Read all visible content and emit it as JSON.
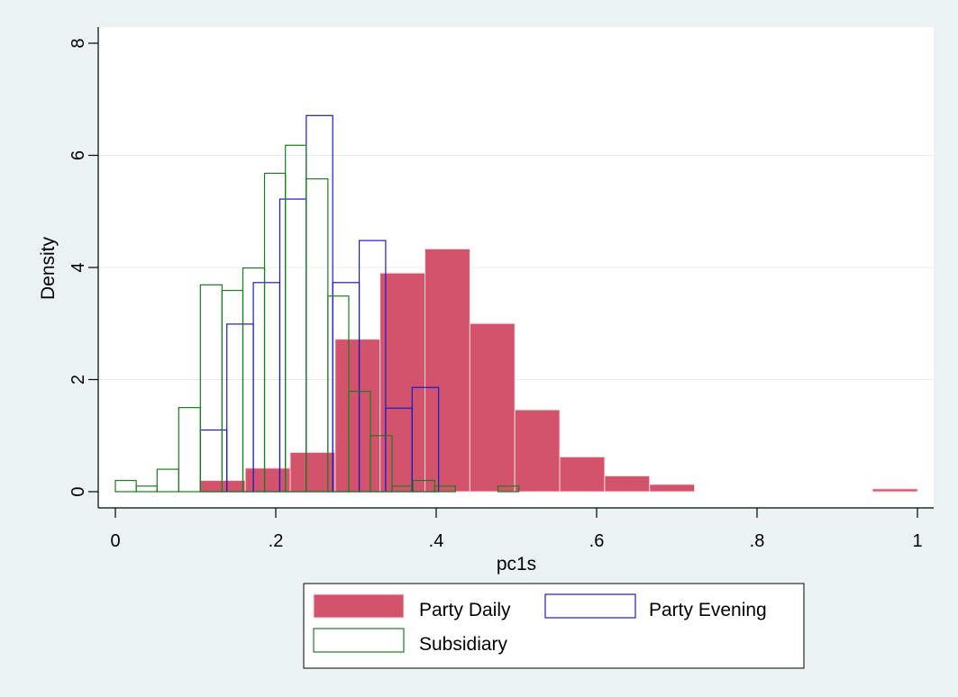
{
  "chart_data": {
    "type": "bar",
    "subtype": "histogram-overlay",
    "xlabel": "pc1s",
    "ylabel": "Density",
    "xlim": [
      0,
      1
    ],
    "ylim": [
      0,
      8
    ],
    "x_ticks": [
      {
        "value": 0,
        "label": "0"
      },
      {
        "value": 0.2,
        "label": ".2"
      },
      {
        "value": 0.4,
        "label": ".4"
      },
      {
        "value": 0.6,
        "label": ".6"
      },
      {
        "value": 0.8,
        "label": ".8"
      },
      {
        "value": 1,
        "label": "1"
      }
    ],
    "y_ticks": [
      {
        "value": 0,
        "label": "0"
      },
      {
        "value": 2,
        "label": "2"
      },
      {
        "value": 4,
        "label": "4"
      },
      {
        "value": 6,
        "label": "6"
      },
      {
        "value": 8,
        "label": "8"
      }
    ],
    "grid": "horizontal",
    "legend_position": "bottom",
    "series": [
      {
        "name": "Party Daily",
        "style": "filled",
        "color": "#d4536c",
        "edge_color": "#f4dada",
        "bins": [
          {
            "x0": 0.106,
            "x1": 0.162,
            "value": 0.2
          },
          {
            "x0": 0.162,
            "x1": 0.218,
            "value": 0.42
          },
          {
            "x0": 0.218,
            "x1": 0.274,
            "value": 0.7
          },
          {
            "x0": 0.274,
            "x1": 0.33,
            "value": 2.72
          },
          {
            "x0": 0.33,
            "x1": 0.386,
            "value": 3.9
          },
          {
            "x0": 0.386,
            "x1": 0.442,
            "value": 4.33
          },
          {
            "x0": 0.442,
            "x1": 0.498,
            "value": 3.0
          },
          {
            "x0": 0.498,
            "x1": 0.554,
            "value": 1.46
          },
          {
            "x0": 0.554,
            "x1": 0.61,
            "value": 0.62
          },
          {
            "x0": 0.61,
            "x1": 0.666,
            "value": 0.28
          },
          {
            "x0": 0.666,
            "x1": 0.722,
            "value": 0.13
          },
          {
            "x0": 0.944,
            "x1": 1.0,
            "value": 0.05
          }
        ]
      },
      {
        "name": "Party Evening",
        "style": "outline",
        "color": "#1a1acc",
        "bins": [
          {
            "x0": 0.106,
            "x1": 0.139,
            "value": 1.1
          },
          {
            "x0": 0.139,
            "x1": 0.172,
            "value": 2.99
          },
          {
            "x0": 0.172,
            "x1": 0.205,
            "value": 3.73
          },
          {
            "x0": 0.205,
            "x1": 0.238,
            "value": 5.22
          },
          {
            "x0": 0.238,
            "x1": 0.271,
            "value": 6.71
          },
          {
            "x0": 0.271,
            "x1": 0.304,
            "value": 3.73
          },
          {
            "x0": 0.304,
            "x1": 0.337,
            "value": 4.48
          },
          {
            "x0": 0.337,
            "x1": 0.37,
            "value": 1.49
          },
          {
            "x0": 0.37,
            "x1": 0.403,
            "value": 1.86
          }
        ]
      },
      {
        "name": "Subsidiary",
        "style": "outline",
        "color": "#1a7f1a",
        "bins": [
          {
            "x0": 0.0,
            "x1": 0.026,
            "value": 0.2
          },
          {
            "x0": 0.026,
            "x1": 0.052,
            "value": 0.1
          },
          {
            "x0": 0.052,
            "x1": 0.079,
            "value": 0.4
          },
          {
            "x0": 0.079,
            "x1": 0.106,
            "value": 1.5
          },
          {
            "x0": 0.106,
            "x1": 0.133,
            "value": 3.69
          },
          {
            "x0": 0.133,
            "x1": 0.159,
            "value": 3.59
          },
          {
            "x0": 0.159,
            "x1": 0.186,
            "value": 3.99
          },
          {
            "x0": 0.186,
            "x1": 0.212,
            "value": 5.68
          },
          {
            "x0": 0.212,
            "x1": 0.238,
            "value": 6.18
          },
          {
            "x0": 0.238,
            "x1": 0.265,
            "value": 5.58
          },
          {
            "x0": 0.265,
            "x1": 0.291,
            "value": 3.49
          },
          {
            "x0": 0.291,
            "x1": 0.318,
            "value": 1.79
          },
          {
            "x0": 0.318,
            "x1": 0.345,
            "value": 1.0
          },
          {
            "x0": 0.345,
            "x1": 0.371,
            "value": 0.1
          },
          {
            "x0": 0.371,
            "x1": 0.398,
            "value": 0.2
          },
          {
            "x0": 0.398,
            "x1": 0.424,
            "value": 0.1
          },
          {
            "x0": 0.477,
            "x1": 0.503,
            "value": 0.1
          }
        ]
      }
    ]
  }
}
